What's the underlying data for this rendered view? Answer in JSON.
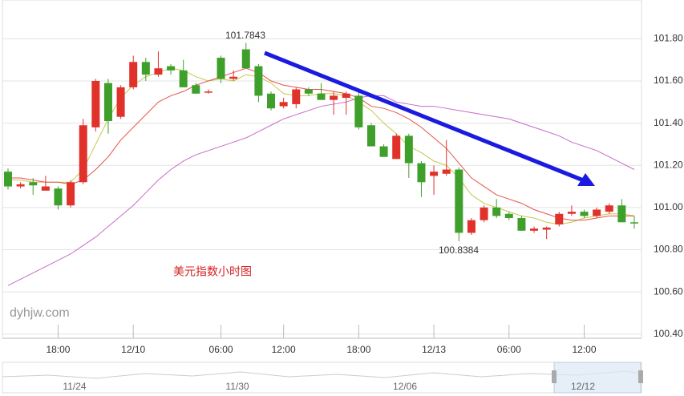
{
  "chart_data": {
    "type": "candlestick",
    "title": "美元指数小时图",
    "watermark": "dyhjw.com",
    "annotations": [
      "101.7843",
      "100.8384"
    ],
    "categories": [
      null,
      null,
      null,
      null,
      "18:00",
      null,
      null,
      null,
      null,
      null,
      "12/10",
      null,
      null,
      null,
      null,
      null,
      null,
      "06:00",
      null,
      null,
      null,
      null,
      "12:00",
      null,
      null,
      null,
      null,
      null,
      "18:00",
      null,
      null,
      null,
      null,
      null,
      "12/13",
      null,
      null,
      null,
      null,
      null,
      "06:00",
      null,
      null,
      null,
      null,
      null,
      "12:00",
      null,
      null,
      null,
      null
    ],
    "open": [
      101.17,
      101.1,
      101.12,
      101.08,
      101.09,
      101.01,
      101.12,
      101.38,
      101.59,
      101.43,
      101.57,
      101.69,
      101.63,
      101.67,
      101.65,
      101.58,
      101.545,
      101.71,
      101.61,
      101.75,
      101.67,
      101.54,
      101.48,
      101.49,
      101.56,
      101.54,
      101.51,
      101.52,
      101.53,
      101.39,
      101.29,
      101.23,
      101.34,
      101.21,
      101.15,
      101.16,
      101.18,
      100.88,
      100.94,
      101.0,
      100.97,
      100.95,
      100.89,
      100.895,
      100.92,
      100.97,
      100.98,
      100.96,
      100.98,
      101.01,
      100.93
    ],
    "high": [
      101.185,
      101.12,
      101.14,
      101.15,
      101.1,
      101.13,
      101.42,
      101.61,
      101.61,
      101.58,
      101.72,
      101.71,
      101.74,
      101.68,
      101.7,
      101.59,
      101.56,
      101.72,
      101.65,
      101.78,
      101.68,
      101.55,
      101.52,
      101.57,
      101.57,
      101.59,
      101.55,
      101.55,
      101.56,
      101.4,
      101.3,
      101.35,
      101.35,
      101.22,
      101.2,
      101.32,
      101.19,
      100.95,
      101.01,
      101.04,
      100.98,
      100.96,
      100.91,
      100.91,
      100.98,
      101.01,
      100.99,
      101.0,
      101.02,
      101.04,
      100.96
    ],
    "low": [
      101.085,
      101.09,
      101.06,
      101.08,
      100.99,
      101.0,
      101.11,
      101.36,
      101.35,
      101.42,
      101.56,
      101.6,
      101.62,
      101.63,
      101.57,
      101.54,
      101.54,
      101.59,
      101.6,
      101.66,
      101.5,
      101.46,
      101.47,
      101.47,
      101.53,
      101.51,
      101.44,
      101.44,
      101.37,
      101.29,
      101.24,
      101.23,
      101.14,
      101.05,
      101.06,
      101.15,
      100.84,
      100.87,
      100.93,
      100.95,
      100.94,
      100.89,
      100.88,
      100.85,
      100.91,
      100.96,
      100.95,
      100.95,
      100.97,
      100.93,
      100.9
    ],
    "close": [
      101.1,
      101.11,
      101.105,
      101.1,
      101.01,
      101.12,
      101.39,
      101.6,
      101.41,
      101.57,
      101.69,
      101.63,
      101.66,
      101.65,
      101.57,
      101.54,
      101.55,
      101.61,
      101.62,
      101.66,
      101.53,
      101.47,
      101.5,
      101.56,
      101.54,
      101.51,
      101.53,
      101.54,
      101.38,
      101.29,
      101.24,
      101.34,
      101.21,
      101.12,
      101.17,
      101.18,
      100.88,
      100.94,
      101.0,
      100.96,
      100.95,
      100.89,
      100.9,
      100.905,
      100.97,
      100.98,
      100.96,
      100.99,
      101.01,
      100.93,
      100.925
    ],
    "up_color": "#e0322a",
    "down_color": "#3f9f2b",
    "lines": [
      {
        "color": "#c2c94a",
        "values": [
          101.13,
          101.13,
          101.12,
          101.12,
          101.12,
          101.12,
          101.18,
          101.3,
          101.42,
          101.52,
          101.58,
          101.62,
          101.64,
          101.66,
          101.65,
          101.62,
          101.6,
          101.61,
          101.6,
          101.63,
          101.62,
          101.59,
          101.54,
          101.53,
          101.53,
          101.54,
          101.54,
          101.53,
          101.5,
          101.46,
          101.4,
          101.35,
          101.29,
          101.26,
          101.22,
          101.2,
          101.14,
          101.06,
          101.02,
          101.0,
          100.98,
          100.96,
          100.95,
          100.93,
          100.92,
          100.93,
          100.95,
          100.96,
          100.97,
          100.97,
          100.96
        ]
      },
      {
        "color": "#e4534a",
        "values": [
          101.14,
          101.14,
          101.13,
          101.12,
          101.12,
          101.11,
          101.13,
          101.18,
          101.24,
          101.32,
          101.38,
          101.44,
          101.5,
          101.53,
          101.55,
          101.58,
          101.6,
          101.62,
          101.64,
          101.66,
          101.64,
          101.6,
          101.58,
          101.57,
          101.56,
          101.56,
          101.55,
          101.54,
          101.52,
          101.48,
          101.47,
          101.45,
          101.42,
          101.38,
          101.33,
          101.28,
          101.21,
          101.14,
          101.1,
          101.06,
          101.04,
          101.02,
          100.99,
          100.97,
          100.95,
          100.94,
          100.94,
          100.95,
          100.96,
          100.96,
          100.96
        ]
      },
      {
        "color": "#c86ac8",
        "values": [
          100.63,
          100.66,
          100.69,
          100.72,
          100.75,
          100.78,
          100.82,
          100.86,
          100.91,
          100.96,
          101.01,
          101.07,
          101.13,
          101.18,
          101.22,
          101.25,
          101.27,
          101.29,
          101.31,
          101.33,
          101.36,
          101.39,
          101.42,
          101.44,
          101.46,
          101.48,
          101.49,
          101.5,
          101.52,
          101.53,
          101.53,
          101.5,
          101.49,
          101.48,
          101.48,
          101.47,
          101.46,
          101.45,
          101.44,
          101.43,
          101.42,
          101.4,
          101.38,
          101.36,
          101.34,
          101.31,
          101.29,
          101.27,
          101.24,
          101.21,
          101.18
        ]
      }
    ],
    "ylim": [
      100.38,
      101.98
    ],
    "yticks": [
      {
        "value": 100.4,
        "label": "100.40"
      },
      {
        "value": 100.6,
        "label": "100.60"
      },
      {
        "value": 100.8,
        "label": "100.80"
      },
      {
        "value": 101.0,
        "label": "101.00"
      },
      {
        "value": 101.2,
        "label": "101.20"
      },
      {
        "value": 101.4,
        "label": "101.40"
      },
      {
        "value": 101.6,
        "label": "101.60"
      },
      {
        "value": 101.8,
        "label": "101.80"
      }
    ],
    "grid": true,
    "navigator_labels": [
      "11/24",
      "11/30",
      "12/06",
      "12/12"
    ]
  }
}
